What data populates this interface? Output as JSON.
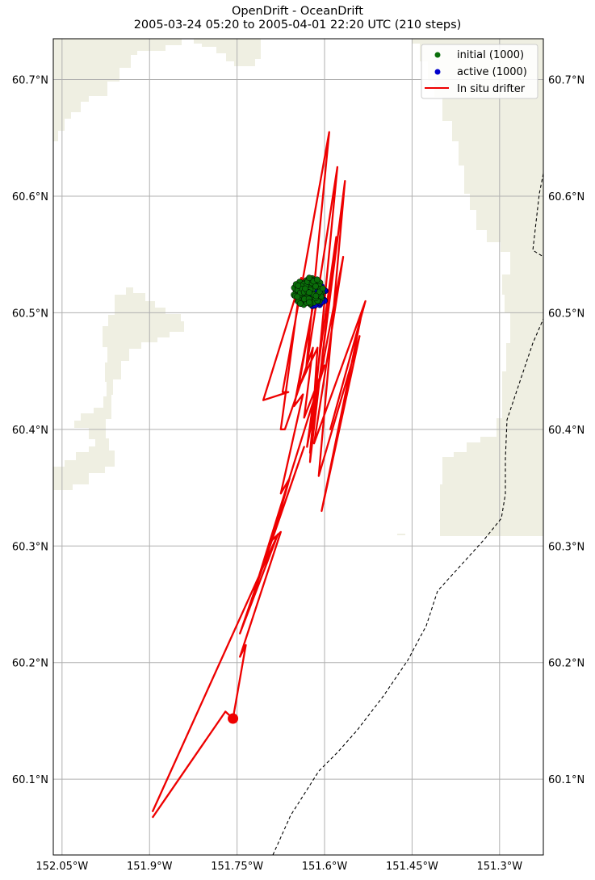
{
  "title": {
    "line1": "OpenDrift - OceanDrift",
    "line2": "2005-03-24 05:20 to 2005-04-01 22:20 UTC (210 steps)"
  },
  "map": {
    "lon_range": [
      -152.065,
      -151.225
    ],
    "lat_range": [
      60.035,
      60.735
    ],
    "land_color": "#efefe2",
    "grid_color": "#b0b0b0",
    "lon_ticks": [
      {
        "value": -152.05,
        "label": "152.05°W"
      },
      {
        "value": -151.9,
        "label": "151.9°W"
      },
      {
        "value": -151.75,
        "label": "151.75°W"
      },
      {
        "value": -151.6,
        "label": "151.6°W"
      },
      {
        "value": -151.45,
        "label": "151.45°W"
      },
      {
        "value": -151.3,
        "label": "151.3°W"
      }
    ],
    "lat_ticks": [
      {
        "value": 60.1,
        "label": "60.1°N"
      },
      {
        "value": 60.2,
        "label": "60.2°N"
      },
      {
        "value": 60.3,
        "label": "60.3°N"
      },
      {
        "value": 60.4,
        "label": "60.4°N"
      },
      {
        "value": 60.5,
        "label": "60.5°N"
      },
      {
        "value": 60.6,
        "label": "60.6°N"
      },
      {
        "value": 60.7,
        "label": "60.7°N"
      }
    ]
  },
  "legend": {
    "position": "top-right",
    "items": [
      {
        "label": "initial (1000)",
        "color": "#0a6e0a",
        "kind": "dot"
      },
      {
        "label": "active (1000)",
        "color": "#0000cc",
        "kind": "dot"
      },
      {
        "label": "In situ drifter",
        "color": "#ee0000",
        "kind": "line"
      }
    ]
  },
  "particles": {
    "center": [
      -151.627,
      60.518
    ],
    "initial_color": "#0a6e0a",
    "active_color": "#0000cc"
  },
  "drifter": {
    "color": "#ee0000",
    "end_marker": [
      -151.757,
      60.152
    ],
    "track": [
      [
        -151.895,
        60.067
      ],
      [
        -151.77,
        60.158
      ],
      [
        -151.757,
        60.152
      ],
      [
        -151.735,
        60.215
      ],
      [
        -151.745,
        60.205
      ],
      [
        -151.675,
        60.312
      ],
      [
        -151.69,
        60.305
      ],
      [
        -151.66,
        60.358
      ],
      [
        -151.675,
        60.345
      ],
      [
        -151.637,
        60.43
      ],
      [
        -151.652,
        60.42
      ],
      [
        -151.62,
        60.505
      ],
      [
        -151.645,
        60.435
      ],
      [
        -151.612,
        60.47
      ],
      [
        -151.625,
        60.372
      ],
      [
        -151.58,
        60.565
      ],
      [
        -151.63,
        60.385
      ],
      [
        -151.568,
        60.548
      ],
      [
        -151.618,
        60.388
      ],
      [
        -151.53,
        60.51
      ],
      [
        -151.59,
        60.4
      ],
      [
        -151.538,
        60.495
      ],
      [
        -151.605,
        60.33
      ],
      [
        -151.54,
        60.48
      ],
      [
        -151.61,
        60.36
      ],
      [
        -151.565,
        60.613
      ],
      [
        -151.625,
        60.38
      ],
      [
        -151.578,
        60.625
      ],
      [
        -151.632,
        60.45
      ],
      [
        -151.592,
        60.655
      ],
      [
        -151.672,
        60.432
      ],
      [
        -151.662,
        60.432
      ],
      [
        -151.705,
        60.425
      ],
      [
        -151.64,
        60.53
      ],
      [
        -151.675,
        60.4
      ],
      [
        -151.668,
        60.4
      ],
      [
        -151.62,
        60.47
      ],
      [
        -151.635,
        60.41
      ],
      [
        -151.6,
        60.455
      ],
      [
        -151.72,
        60.262
      ],
      [
        -151.635,
        60.385
      ],
      [
        -151.745,
        60.225
      ],
      [
        -151.68,
        60.31
      ],
      [
        -151.895,
        60.072
      ]
    ]
  }
}
